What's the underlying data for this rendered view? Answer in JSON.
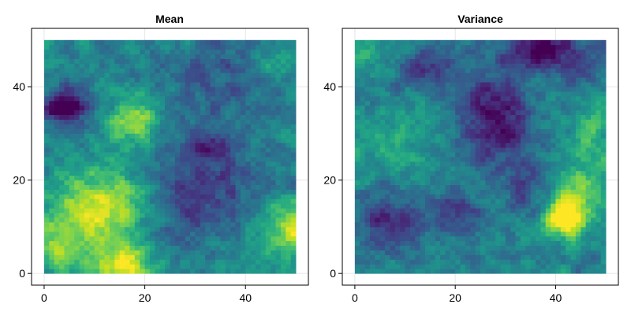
{
  "chart_data": [
    {
      "type": "heatmap",
      "title": "Mean",
      "xlabel": "",
      "ylabel": "",
      "xlim": [
        -2.5,
        52.5
      ],
      "ylim": [
        -2.5,
        52.5
      ],
      "grid": 50,
      "x_ticks": [
        0,
        20,
        40
      ],
      "y_ticks": [
        0,
        20,
        40
      ],
      "grid_lines": true,
      "colormap": "viridis",
      "hotspots": [
        {
          "x": 4,
          "y": 36,
          "sx": 3,
          "sy": 3,
          "v": -0.55
        },
        {
          "x": 33,
          "y": 27,
          "sx": 3,
          "sy": 2.5,
          "v": -0.3
        },
        {
          "x": 30,
          "y": 17,
          "sx": 9,
          "sy": 7,
          "v": -0.25
        },
        {
          "x": 37,
          "y": 42,
          "sx": 9,
          "sy": 6,
          "v": -0.18
        },
        {
          "x": 22,
          "y": 10,
          "sx": 6,
          "sy": 4,
          "v": -0.1
        },
        {
          "x": 12,
          "y": 14,
          "sx": 7,
          "sy": 6,
          "v": 0.55
        },
        {
          "x": 16,
          "y": 2,
          "sx": 4,
          "sy": 3,
          "v": 0.5
        },
        {
          "x": 18,
          "y": 33,
          "sx": 3.5,
          "sy": 4,
          "v": 0.38
        },
        {
          "x": 49,
          "y": 10,
          "sx": 3,
          "sy": 4,
          "v": 0.45
        },
        {
          "x": 2,
          "y": 5,
          "sx": 5,
          "sy": 4,
          "v": 0.3
        },
        {
          "x": 46,
          "y": 44,
          "sx": 4,
          "sy": 4,
          "v": 0.18
        },
        {
          "x": 42,
          "y": 5,
          "sx": 5,
          "sy": 4,
          "v": 0.1
        }
      ]
    },
    {
      "type": "heatmap",
      "title": "Variance",
      "xlabel": "",
      "ylabel": "",
      "xlim": [
        -2.5,
        52.5
      ],
      "ylim": [
        -2.5,
        52.5
      ],
      "grid": 50,
      "x_ticks": [
        0,
        20,
        40
      ],
      "y_ticks": [
        0,
        20,
        40
      ],
      "grid_lines": true,
      "colormap": "viridis",
      "hotspots": [
        {
          "x": 42,
          "y": 12,
          "sx": 2.5,
          "sy": 2.5,
          "v": 0.7
        },
        {
          "x": 44,
          "y": 17,
          "sx": 4,
          "sy": 5,
          "v": 0.3
        },
        {
          "x": 37,
          "y": 48,
          "sx": 5,
          "sy": 3,
          "v": -0.5
        },
        {
          "x": 28,
          "y": 33,
          "sx": 5,
          "sy": 7,
          "v": -0.42
        },
        {
          "x": 15,
          "y": 44,
          "sx": 4,
          "sy": 3,
          "v": -0.3
        },
        {
          "x": 7,
          "y": 11,
          "sx": 4,
          "sy": 4,
          "v": -0.35
        },
        {
          "x": 20,
          "y": 13,
          "sx": 4,
          "sy": 3,
          "v": -0.3
        },
        {
          "x": 35,
          "y": 18,
          "sx": 3,
          "sy": 4,
          "v": -0.2
        },
        {
          "x": 48,
          "y": 30,
          "sx": 3,
          "sy": 5,
          "v": 0.2
        },
        {
          "x": 8,
          "y": 28,
          "sx": 6,
          "sy": 5,
          "v": 0.15
        },
        {
          "x": 47,
          "y": 45,
          "sx": 4,
          "sy": 4,
          "v": -0.15
        },
        {
          "x": 2,
          "y": 48,
          "sx": 4,
          "sy": 3,
          "v": 0.15
        }
      ]
    }
  ]
}
